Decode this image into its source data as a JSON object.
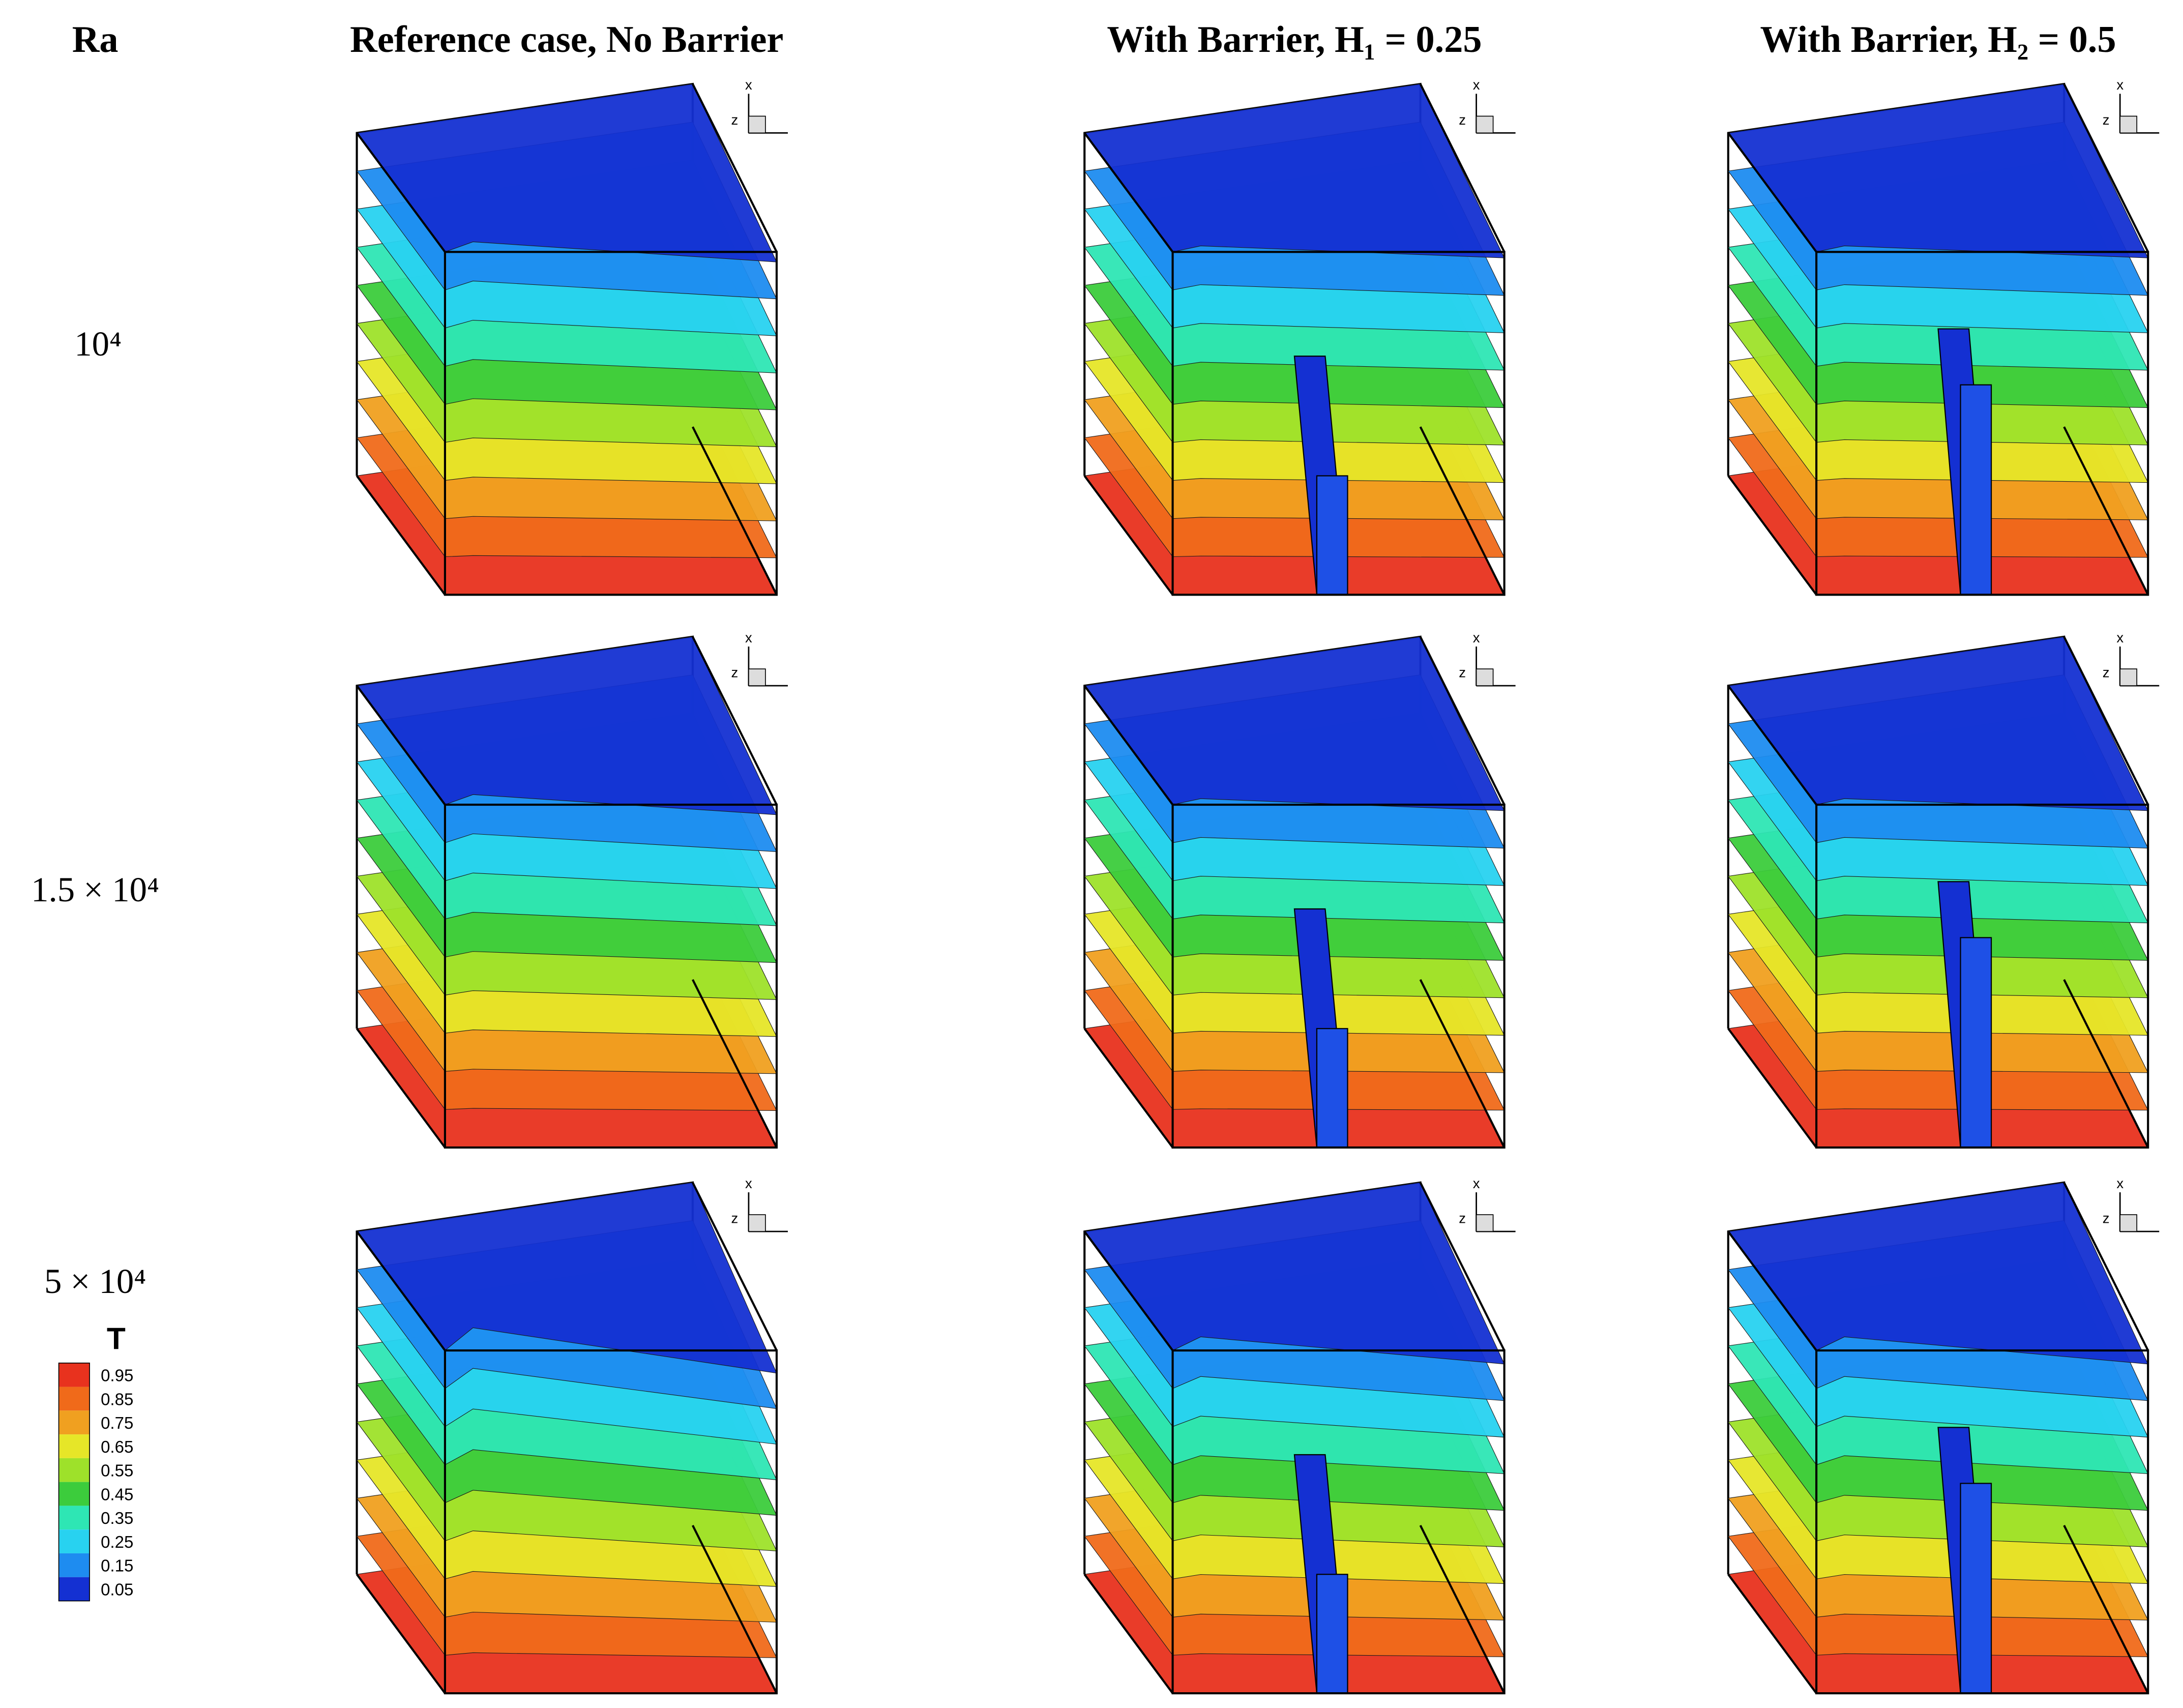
{
  "header": {
    "row_label_title": "Ra",
    "columns": [
      "Reference case, No Barrier",
      "With Barrier, H₁ = 0.25",
      "With Barrier, H₂ = 0.5"
    ]
  },
  "rows": [
    "10⁴",
    "1.5 × 10⁴",
    "5 × 10⁴"
  ],
  "axis_labels": {
    "x": "x",
    "z": "z"
  },
  "legend": {
    "title": "T",
    "values": [
      0.95,
      0.85,
      0.75,
      0.65,
      0.55,
      0.45,
      0.35,
      0.25,
      0.15,
      0.05
    ],
    "colors": [
      "#e8321e",
      "#f06a1a",
      "#f0a020",
      "#e6e628",
      "#9ee12a",
      "#3ccc3c",
      "#2ee6b4",
      "#28d2f0",
      "#1e8cf0",
      "#1430d2"
    ]
  }
}
